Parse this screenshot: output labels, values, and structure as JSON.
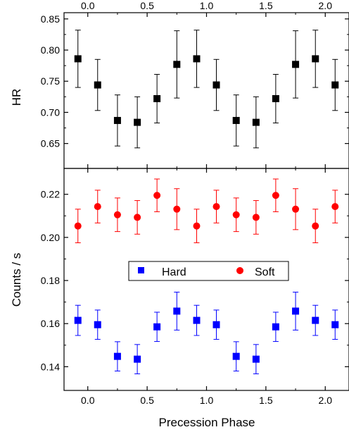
{
  "chart_data": {
    "type": "scatter",
    "shared_x": {
      "label": "Precession Phase",
      "range": [
        -0.2,
        2.2
      ],
      "ticks": [
        0.0,
        0.5,
        1.0,
        1.5,
        2.0
      ],
      "tick_labels": [
        "0.0",
        "0.5",
        "1.0",
        "1.5",
        "2.0"
      ],
      "top_tick_labels": [
        "0.0",
        "0.5",
        "1.0",
        "1.5",
        "2.0"
      ]
    },
    "panels": [
      {
        "ylabel": "HR",
        "ylim": [
          0.61,
          0.86
        ],
        "yticks": [
          0.65,
          0.7,
          0.75,
          0.8,
          0.85
        ],
        "ytick_labels": [
          "0.65",
          "0.70",
          "0.75",
          "0.80",
          "0.85"
        ],
        "series": [
          {
            "color": "#000000",
            "marker": "square",
            "x": [
              -0.083,
              0.083,
              0.25,
              0.417,
              0.583,
              0.75,
              0.917,
              1.083,
              1.25,
              1.417,
              1.583,
              1.75,
              1.917,
              2.083
            ],
            "y": [
              0.786,
              0.744,
              0.687,
              0.684,
              0.722,
              0.777,
              0.786,
              0.744,
              0.687,
              0.684,
              0.722,
              0.777,
              0.786,
              0.744
            ],
            "err": [
              0.046,
              0.041,
              0.041,
              0.041,
              0.039,
              0.054,
              0.046,
              0.041,
              0.041,
              0.041,
              0.039,
              0.054,
              0.046,
              0.041
            ]
          }
        ]
      },
      {
        "ylabel": "Counts / s",
        "ylim": [
          0.129,
          0.232
        ],
        "yticks": [
          0.14,
          0.16,
          0.18,
          0.2,
          0.22
        ],
        "ytick_labels": [
          "0.14",
          "0.16",
          "0.18",
          "0.20",
          "0.22"
        ],
        "legend": {
          "placement": "center",
          "entries": [
            "Hard",
            "Soft"
          ]
        },
        "series": [
          {
            "name": "Hard",
            "color": "#0000ff",
            "marker": "square",
            "x": [
              -0.083,
              0.083,
              0.25,
              0.417,
              0.583,
              0.75,
              0.917,
              1.083,
              1.25,
              1.417,
              1.583,
              1.75,
              1.917,
              2.083
            ],
            "y": [
              0.1615,
              0.1595,
              0.1448,
              0.1435,
              0.1585,
              0.1658,
              0.1615,
              0.1595,
              0.1448,
              0.1435,
              0.1585,
              0.1658,
              0.1615,
              0.1595
            ],
            "err": [
              0.007,
              0.0068,
              0.0068,
              0.0068,
              0.0068,
              0.0088,
              0.007,
              0.0068,
              0.0068,
              0.0068,
              0.0068,
              0.0088,
              0.007,
              0.0068
            ]
          },
          {
            "name": "Soft",
            "color": "#ff0000",
            "marker": "circle",
            "x": [
              -0.083,
              0.083,
              0.25,
              0.417,
              0.583,
              0.75,
              0.917,
              1.083,
              1.25,
              1.417,
              1.583,
              1.75,
              1.917,
              2.083
            ],
            "y": [
              0.2053,
              0.2143,
              0.2105,
              0.2093,
              0.2195,
              0.2131,
              0.2053,
              0.2143,
              0.2105,
              0.2093,
              0.2195,
              0.2131,
              0.2053,
              0.2143
            ],
            "err": [
              0.0078,
              0.0076,
              0.0078,
              0.0078,
              0.0076,
              0.0095,
              0.0078,
              0.0076,
              0.0078,
              0.0078,
              0.0076,
              0.0095,
              0.0078,
              0.0076
            ]
          }
        ]
      }
    ]
  }
}
